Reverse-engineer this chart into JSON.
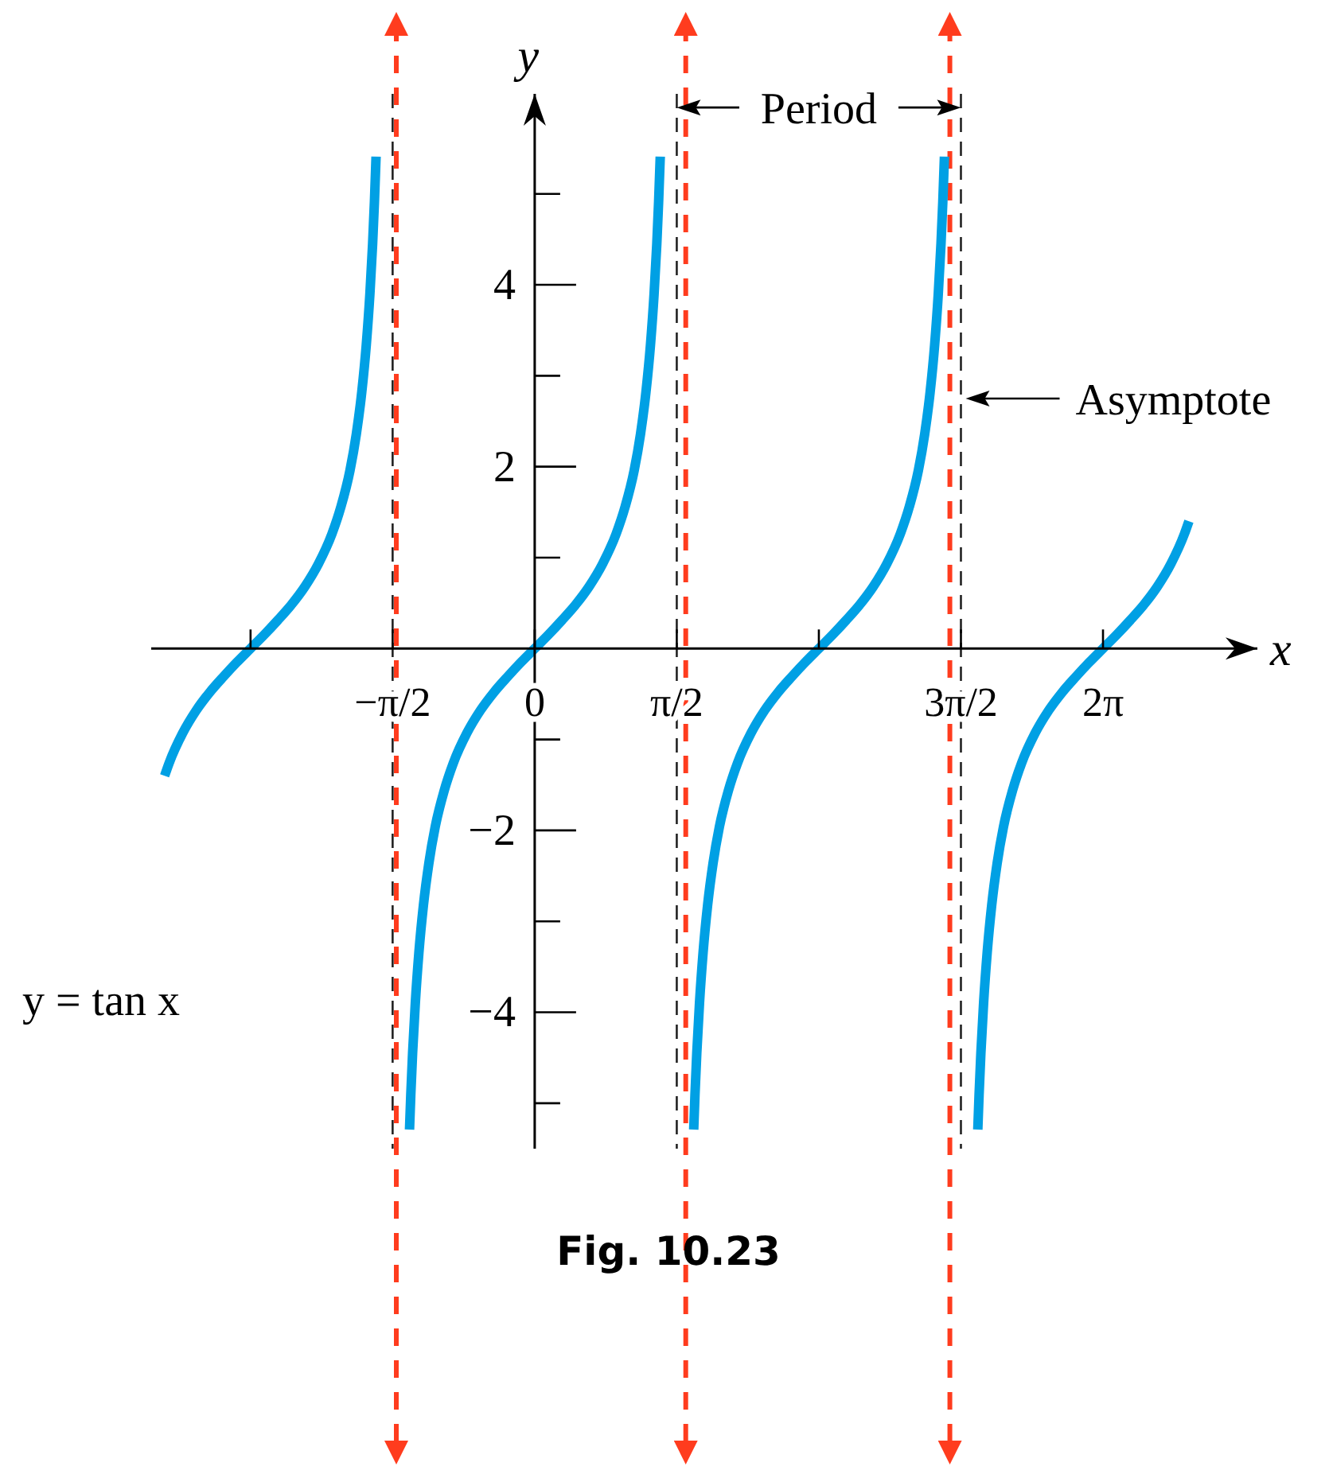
{
  "chart_data": {
    "type": "line",
    "title": "y = tan x",
    "xlabel": "x",
    "ylabel": "y",
    "xlim": [
      -4.24,
      7.99
    ],
    "ylim": [
      -5.5,
      6.1
    ],
    "xticks": [
      {
        "value": -3.1416,
        "label": null
      },
      {
        "value": -1.5708,
        "label": "−π/2"
      },
      {
        "value": 0,
        "label": "0"
      },
      {
        "value": 1.5708,
        "label": "π/2"
      },
      {
        "value": 3.1416,
        "label": null
      },
      {
        "value": 4.7124,
        "label": "3π/2"
      },
      {
        "value": 6.2832,
        "label": "2π"
      }
    ],
    "yticks": [
      {
        "value": -5,
        "label": null
      },
      -4,
      {
        "value": -3,
        "label": null
      },
      -2,
      {
        "value": -1,
        "label": null
      },
      {
        "value": 1,
        "label": null
      },
      2,
      {
        "value": 3,
        "label": null
      },
      4,
      {
        "value": 5,
        "label": null
      }
    ],
    "series": [
      {
        "color": "#00a0e4",
        "x": [
          -4.092,
          -4.042,
          -3.892,
          -3.742,
          -3.592,
          -3.442,
          -3.292,
          -3.142,
          -2.992,
          -2.842,
          -2.692,
          -2.542,
          -2.392,
          -2.242,
          -2.142,
          -2.042,
          -1.972,
          -1.912,
          -1.862,
          -1.822,
          -1.792,
          -1.772,
          -1.754,
          -1.571,
          -1.384,
          -1.37,
          -1.35,
          -1.32,
          -1.28,
          -1.23,
          -1.17,
          -1.1,
          -1.0,
          -0.9,
          -0.75,
          -0.6,
          -0.45,
          -0.3,
          -0.15,
          0,
          0.15,
          0.3,
          0.45,
          0.6,
          0.75,
          0.9,
          1.0,
          1.1,
          1.17,
          1.23,
          1.28,
          1.32,
          1.35,
          1.37,
          1.388,
          1.571,
          1.758,
          1.772,
          1.792,
          1.822,
          1.862,
          1.912,
          1.972,
          2.042,
          2.142,
          2.242,
          2.392,
          2.542,
          2.692,
          2.842,
          2.992,
          3.142,
          3.292,
          3.442,
          3.592,
          3.742,
          3.892,
          4.042,
          4.142,
          4.242,
          4.312,
          4.372,
          4.422,
          4.462,
          4.492,
          4.512,
          4.53,
          4.712,
          4.899,
          4.913,
          4.933,
          4.963,
          5.003,
          5.053,
          5.113,
          5.183,
          5.283,
          5.383,
          5.533,
          5.683,
          5.833,
          5.983,
          6.133,
          6.283,
          6.433,
          6.583,
          6.733,
          6.883,
          7.033,
          7.183,
          7.233
        ],
        "values": [
          -1.4,
          -1.26,
          -0.93,
          -0.68,
          -0.48,
          -0.31,
          -0.15,
          0,
          0.15,
          0.31,
          0.48,
          0.68,
          0.93,
          1.26,
          1.56,
          1.96,
          2.36,
          2.82,
          3.34,
          3.9,
          4.45,
          4.91,
          5.41,
          null,
          -5.29,
          -4.91,
          -4.45,
          -3.9,
          -3.34,
          -2.82,
          -2.36,
          -1.96,
          -1.56,
          -1.26,
          -0.93,
          -0.68,
          -0.48,
          -0.31,
          -0.15,
          0,
          0.15,
          0.31,
          0.48,
          0.68,
          0.93,
          1.26,
          1.56,
          1.96,
          2.36,
          2.82,
          3.34,
          3.9,
          4.45,
          4.91,
          5.41,
          null,
          -5.29,
          -4.91,
          -4.45,
          -3.9,
          -3.34,
          -2.82,
          -2.36,
          -1.96,
          -1.56,
          -1.26,
          -0.93,
          -0.68,
          -0.48,
          -0.31,
          -0.15,
          0,
          0.15,
          0.31,
          0.48,
          0.68,
          0.93,
          1.26,
          1.56,
          1.96,
          2.36,
          2.82,
          3.34,
          3.9,
          4.45,
          4.91,
          5.41,
          null,
          -5.29,
          -4.91,
          -4.45,
          -3.9,
          -3.34,
          -2.82,
          -2.36,
          -1.96,
          -1.56,
          -1.26,
          -0.93,
          -0.68,
          -0.48,
          -0.31,
          -0.15,
          0,
          0.15,
          0.31,
          0.48,
          0.68,
          0.93,
          1.26,
          1.4
        ]
      }
    ],
    "ref_lines": [
      {
        "axis": "x",
        "value": -1.53,
        "color": "#ff3c1e",
        "line_style": "dashed"
      },
      {
        "axis": "x",
        "value": 1.67,
        "color": "#ff3c1e",
        "line_style": "dashed"
      },
      {
        "axis": "x",
        "value": 4.59,
        "color": "#ff3c1e",
        "line_style": "dashed"
      },
      {
        "axis": "x",
        "value": -1.5708,
        "line_style": "dashed"
      },
      {
        "axis": "x",
        "value": 1.5708,
        "line_style": "dashed"
      },
      {
        "axis": "x",
        "value": 4.7124,
        "line_style": "dashed"
      }
    ],
    "annotations": [
      {
        "text": "Period",
        "x": 4.7124,
        "y": 5.95
      },
      {
        "text": "Asymptote",
        "x": 4.7124,
        "y": 2.75
      },
      "Fig. 10.23"
    ]
  }
}
